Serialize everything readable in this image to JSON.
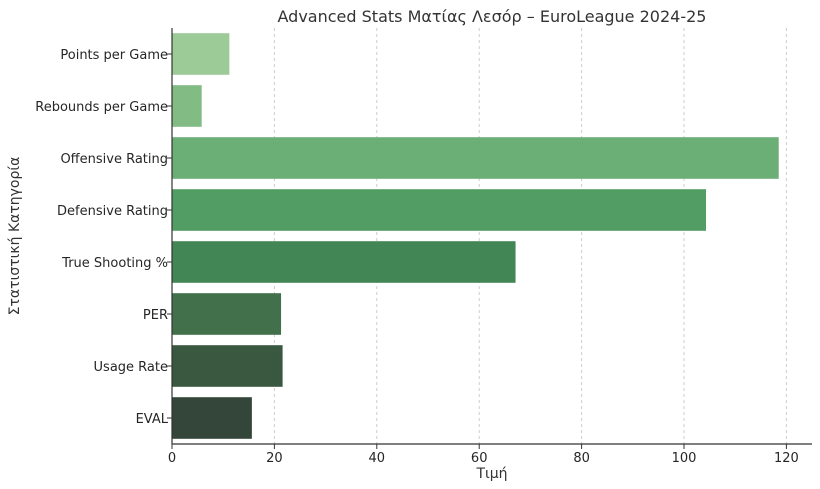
{
  "chart_data": {
    "type": "bar",
    "orientation": "horizontal",
    "title": "Advanced Stats Ματίας Λεσόρ – EuroLeague 2024-25",
    "xlabel": "Τιμή",
    "ylabel": "Στατιστική Κατηγορία",
    "categories": [
      "Points per Game",
      "Rebounds per Game",
      "Offensive Rating",
      "Defensive Rating",
      "True Shooting %",
      "PER",
      "Usage Rate",
      "EVAL"
    ],
    "values": [
      11.2,
      5.8,
      118.5,
      104.3,
      67.1,
      21.3,
      21.6,
      15.6
    ],
    "colors": [
      "#9ccb97",
      "#82bb84",
      "#6baf77",
      "#519d63",
      "#418654",
      "#41704b",
      "#3a573f",
      "#344539"
    ],
    "xlim": [
      0,
      125
    ],
    "xticks": [
      0,
      20,
      40,
      60,
      80,
      100,
      120
    ],
    "grid": "x-dashed"
  }
}
